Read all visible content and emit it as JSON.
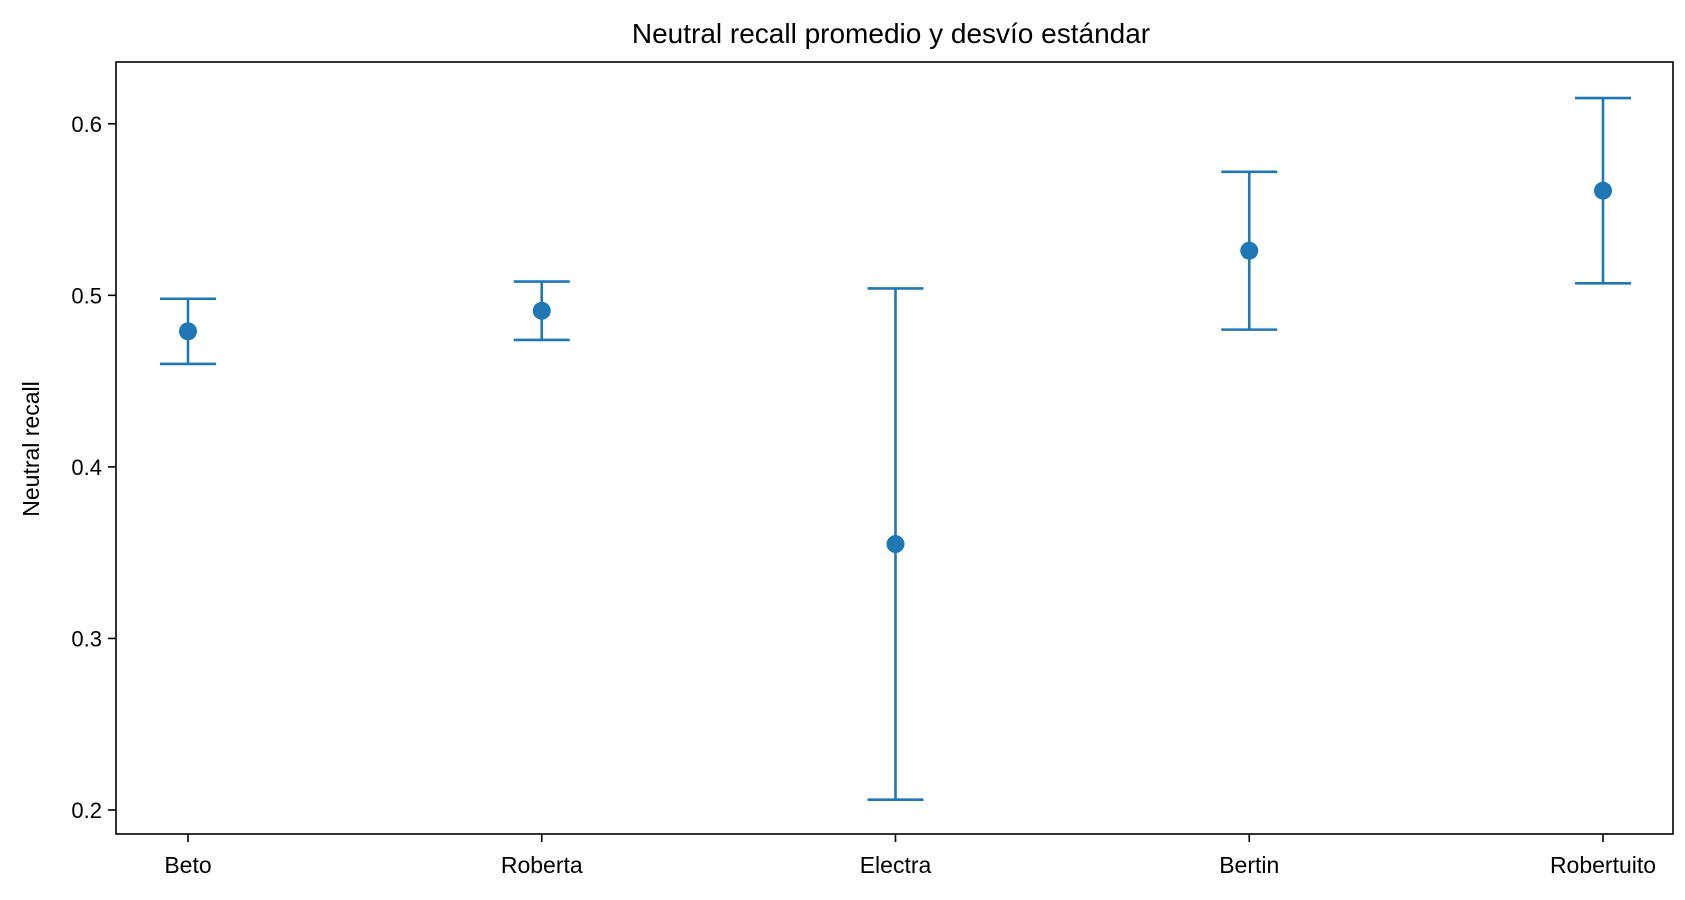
{
  "chart_data": {
    "type": "scatter",
    "title": "Neutral recall promedio y desvío estándar",
    "xlabel": "",
    "ylabel": "Neutral recall",
    "categories": [
      "Beto",
      "Roberta",
      "Electra",
      "Bertin",
      "Robertuito"
    ],
    "series": [
      {
        "values": [
          0.479,
          0.491,
          0.355,
          0.526,
          0.561
        ],
        "errors": [
          0.019,
          0.017,
          0.149,
          0.046,
          0.054
        ],
        "color": "#1f77b4"
      }
    ],
    "ylim": [
      0.186,
      0.636
    ],
    "yticks": [
      0.2,
      0.3,
      0.4,
      0.5,
      0.6
    ],
    "ytick_labels": [
      "0.2",
      "0.3",
      "0.4",
      "0.5",
      "0.6"
    ],
    "grid": false,
    "legend": "none"
  }
}
